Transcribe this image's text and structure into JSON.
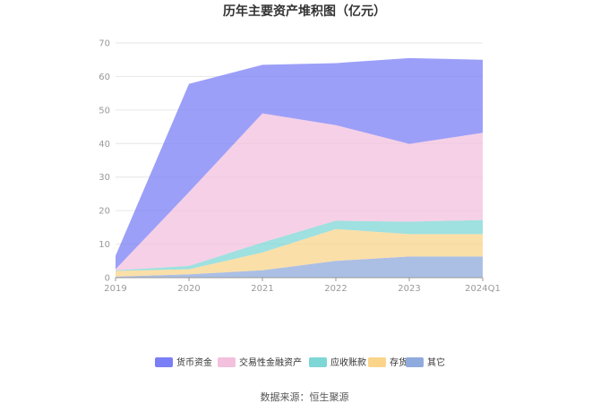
{
  "chart_data": {
    "type": "area",
    "stacked": true,
    "title": "历年主要资产堆积图（亿元）",
    "categories": [
      "2019",
      "2020",
      "2021",
      "2022",
      "2023",
      "2024Q1"
    ],
    "y_ticks": [
      "0",
      "10",
      "20",
      "30",
      "40",
      "50",
      "60",
      "70"
    ],
    "ylim": [
      0,
      70
    ],
    "grid": true,
    "legend_position": "bottom",
    "series": [
      {
        "name": "其它",
        "color": "#8faadc",
        "values": [
          0.3,
          1.0,
          2.2,
          5.0,
          6.3,
          6.3
        ]
      },
      {
        "name": "存货",
        "color": "#fad48b",
        "values": [
          1.7,
          1.5,
          5.3,
          9.5,
          6.7,
          6.7
        ]
      },
      {
        "name": "应收账款",
        "color": "#7fd6d6",
        "values": [
          0.2,
          1.0,
          3.0,
          2.5,
          3.7,
          4.2
        ]
      },
      {
        "name": "交易性金融资产",
        "color": "#f3c0dd",
        "values": [
          0.3,
          22.0,
          38.5,
          28.5,
          23.2,
          26.0
        ]
      },
      {
        "name": "货币资金",
        "color": "#7b7ff5",
        "values": [
          4.0,
          32.3,
          14.5,
          18.5,
          25.6,
          21.8
        ]
      }
    ],
    "legend_order": [
      "货币资金",
      "交易性金融资产",
      "应收账款",
      "存货",
      "其它"
    ]
  },
  "source_text": "数据来源：恒生聚源"
}
